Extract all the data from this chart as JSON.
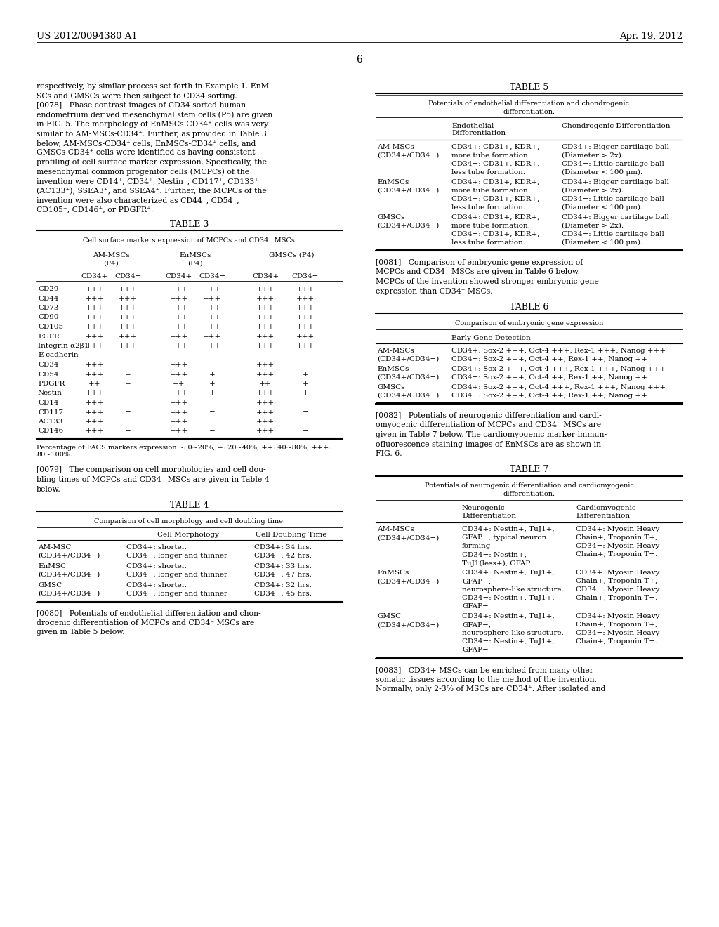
{
  "bg_color": "#ffffff",
  "header_left": "US 2012/0094380 A1",
  "header_right": "Apr. 19, 2012",
  "page_number": "6",
  "left_col": {
    "intro_text": [
      "respectively, by similar process set forth in Example 1. EnM-",
      "SCs and GMSCs were then subject to CD34 sorting.",
      "[0078]   Phase contrast images of CD34 sorted human",
      "endometrium derived mesenchymal stem cells (P5) are given",
      "in FIG. 5. The morphology of EnMSCs-CD34⁺ cells was very",
      "similar to AM-MSCs-CD34⁺. Further, as provided in Table 3",
      "below, AM-MSCs-CD34⁺ cells, EnMSCs-CD34⁺ cells, and",
      "GMSCs-CD34⁺ cells were identified as having consistent",
      "profiling of cell surface marker expression. Specifically, the",
      "mesenchymal common progenitor cells (MCPCs) of the",
      "invention were CD14⁺, CD34⁺, Nestin⁺, CD117⁺, CD133⁺",
      "(AC133⁺), SSEA3⁺, and SSEA4⁺. Further, the MCPCs of the",
      "invention were also characterized as CD44⁺, CD54⁺,",
      "CD105⁺, CD146⁺, or PDGFR⁺."
    ],
    "table3_title": "TABLE 3",
    "table3_subtitle": "Cell surface markers expression of MCPCs and CD34⁻ MSCs.",
    "table3_subheaders": [
      "CD34+",
      "CD34−",
      "CD34+",
      "CD34−",
      "CD34+",
      "CD34−"
    ],
    "table3_rows": [
      [
        "CD29",
        "+++",
        "+++",
        "+++",
        "+++",
        "+++",
        "+++"
      ],
      [
        "CD44",
        "+++",
        "+++",
        "+++",
        "+++",
        "+++",
        "+++"
      ],
      [
        "CD73",
        "+++",
        "+++",
        "+++",
        "+++",
        "+++",
        "+++"
      ],
      [
        "CD90",
        "+++",
        "+++",
        "+++",
        "+++",
        "+++",
        "+++"
      ],
      [
        "CD105",
        "+++",
        "+++",
        "+++",
        "+++",
        "+++",
        "+++"
      ],
      [
        "EGFR",
        "+++",
        "+++",
        "+++",
        "+++",
        "+++",
        "+++"
      ],
      [
        "Integrin α2β1",
        "+++",
        "+++",
        "+++",
        "+++",
        "+++",
        "+++"
      ],
      [
        "E-cadherin",
        "−",
        "−",
        "−",
        "−",
        "−",
        "−"
      ],
      [
        "CD34",
        "+++",
        "−",
        "+++",
        "−",
        "+++",
        "−"
      ],
      [
        "CD54",
        "+++",
        "+",
        "+++",
        "+",
        "+++",
        "+"
      ],
      [
        "PDGFR",
        "++",
        "+",
        "++",
        "+",
        "++",
        "+"
      ],
      [
        "Nestin",
        "+++",
        "+",
        "+++",
        "+",
        "+++",
        "+"
      ],
      [
        "CD14",
        "+++",
        "−",
        "+++",
        "−",
        "+++",
        "−"
      ],
      [
        "CD117",
        "+++",
        "−",
        "+++",
        "−",
        "+++",
        "−"
      ],
      [
        "AC133",
        "+++",
        "−",
        "+++",
        "−",
        "+++",
        "−"
      ],
      [
        "CD146",
        "+++",
        "−",
        "+++",
        "−",
        "+++",
        "−"
      ]
    ],
    "table3_footnote": "Percentage of FACS markers expression: -: 0~20%, +: 20~40%, ++: 40~80%, +++:\n80~100%.",
    "para_0079": "[0079]   The comparison on cell morphologies and cell dou-\nbling times of MCPCs and CD34⁻ MSCs are given in Table 4\nbelow.",
    "table4_title": "TABLE 4",
    "table4_subtitle": "Comparison of cell morphology and cell doubling time.",
    "table4_rows": [
      [
        "AM-MSC\n(CD34+/CD34−)",
        "CD34+: shorter.\nCD34−: longer and thinner",
        "CD34+: 34 hrs.\nCD34−: 42 hrs."
      ],
      [
        "EnMSC\n(CD34+/CD34−)",
        "CD34+: shorter.\nCD34−: longer and thinner",
        "CD34+: 33 hrs.\nCD34−: 47 hrs."
      ],
      [
        "GMSC\n(CD34+/CD34−)",
        "CD34+: shorter.\nCD34−: longer and thinner",
        "CD34+: 32 hrs.\nCD34−: 45 hrs."
      ]
    ],
    "para_0080": "[0080]   Potentials of endothelial differentiation and chon-\ndrogenic differentiation of MCPCs and CD34⁻ MSCs are\ngiven in Table 5 below."
  },
  "right_col": {
    "table5_title": "TABLE 5",
    "table5_subtitle": "Potentials of endothelial differentiation and chondrogenic\ndifferentiation.",
    "table5_rows": [
      [
        "AM-MSCs\n(CD34+/CD34−)",
        "CD34+: CD31+, KDR+,\nmore tube formation.\nCD34−: CD31+, KDR+,\nless tube formation.",
        "CD34+: Bigger cartilage ball\n(Diameter > 2x).\nCD34−: Little cartilage ball\n(Diameter < 100 μm)."
      ],
      [
        "EnMSCs\n(CD34+/CD34−)",
        "CD34+: CD31+, KDR+,\nmore tube formation.\nCD34−: CD31+, KDR+,\nless tube formation.",
        "CD34+: Bigger cartilage ball\n(Diameter > 2x).\nCD34−: Little cartilage ball\n(Diameter < 100 μm)."
      ],
      [
        "GMSCs\n(CD34+/CD34−)",
        "CD34+: CD31+, KDR+,\nmore tube formation.\nCD34−: CD31+, KDR+,\nless tube formation.",
        "CD34+: Bigger cartilage ball\n(Diameter > 2x).\nCD34−: Little cartilage ball\n(Diameter < 100 μm)."
      ]
    ],
    "para_0081": "[0081]   Comparison of embryonic gene expression of\nMCPCs and CD34⁻ MSCs are given in Table 6 below.\nMCPCs of the invention showed stronger embryonic gene\nexpression than CD34⁻ MSCs.",
    "table6_title": "TABLE 6",
    "table6_subtitle": "Comparison of embryonic gene expression",
    "table6_col_header": "Early Gene Detection",
    "table6_rows": [
      [
        "AM-MSCs\n(CD34+/CD34−)",
        "CD34+: Sox-2 +++, Oct-4 +++, Rex-1 +++, Nanog +++\nCD34−: Sox-2 +++, Oct-4 ++, Rex-1 ++, Nanog ++"
      ],
      [
        "EnMSCs\n(CD34+/CD34−)",
        "CD34+: Sox-2 +++, Oct-4 +++, Rex-1 +++, Nanog +++\nCD34−: Sox-2 +++, Oct-4 ++, Rex-1 ++, Nanog ++"
      ],
      [
        "GMSCs\n(CD34+/CD34−)",
        "CD34+: Sox-2 +++, Oct-4 +++, Rex-1 +++, Nanog +++\nCD34−: Sox-2 +++, Oct-4 ++, Rex-1 ++, Nanog ++"
      ]
    ],
    "para_0082": "[0082]   Potentials of neurogenic differentiation and cardi-\nomyogenic differentiation of MCPCs and CD34⁻ MSCs are\ngiven in Table 7 below. The cardiomyogenic marker immun-\nofluorescence staining images of EnMSCs are as shown in\nFIG. 6.",
    "table7_title": "TABLE 7",
    "table7_subtitle": "Potentials of neurogenic differentiation and cardiomyogenic\ndifferentiation.",
    "table7_rows": [
      [
        "AM-MSCs\n(CD34+/CD34−)",
        "CD34+: Nestin+, TuJ1+,\nGFAP−, typical neuron\nforming\nCD34−: Nestin+,\nTuJ1(less+), GFAP−",
        "CD34+: Myosin Heavy\nChain+, Troponin T+,\nCD34−: Myosin Heavy\nChain+, Troponin T−."
      ],
      [
        "EnMSCs\n(CD34+/CD34−)",
        "CD34+: Nestin+, TuJ1+,\nGFAP−,\nneurosphere-like structure.\nCD34−: Nestin+, TuJ1+,\nGFAP−",
        "CD34+: Myosin Heavy\nChain+, Troponin T+,\nCD34−: Myosin Heavy\nChain+, Troponin T−."
      ],
      [
        "GMSC\n(CD34+/CD34−)",
        "CD34+: Nestin+, TuJ1+,\nGFAP−,\nneurosphere-like structure.\nCD34−: Nestin+, TuJ1+,\nGFAP−",
        "CD34+: Myosin Heavy\nChain+, Troponin T+,\nCD34−: Myosin Heavy\nChain+, Troponin T−."
      ]
    ],
    "para_0083": "[0083]   CD34+ MSCs can be enriched from many other\nsomatic tissues according to the method of the invention.\nNormally, only 2-3% of MSCs are CD34⁺. After isolated and"
  }
}
